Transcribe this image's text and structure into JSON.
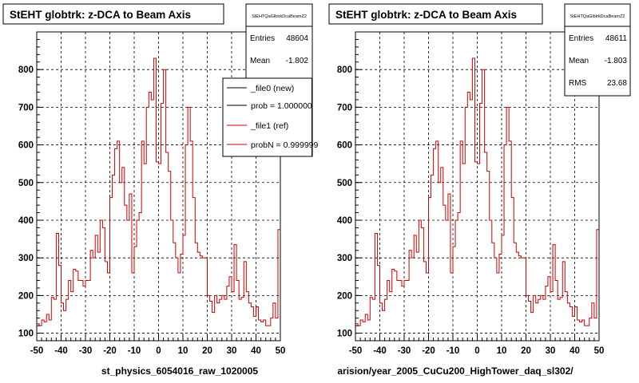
{
  "colors": {
    "frame": "#000000",
    "grid": "#000000",
    "histogram": "#cc0000",
    "background": "#ffffff"
  },
  "chart_data": [
    {
      "type": "line",
      "step": true,
      "title": "StEHT globtrk: z-DCA to Beam Axis",
      "xlabel": "st_physics_6054016_raw_1020005",
      "ylabel": "",
      "xlim": [
        -50,
        50
      ],
      "ylim": [
        80,
        900
      ],
      "x_ticks": [
        -50,
        -40,
        -30,
        -20,
        -10,
        0,
        10,
        20,
        30,
        40,
        50
      ],
      "y_ticks": [
        100,
        200,
        300,
        400,
        500,
        600,
        700,
        800
      ],
      "grid": true,
      "stats": {
        "header": "StEHTQaGlbtrkDcaBeamZ2",
        "rows": [
          {
            "label": "Entries",
            "value": "48604"
          },
          {
            "label": "Mean",
            "value": "-1.802"
          }
        ]
      },
      "legend": {
        "placement": "top-right",
        "entries": [
          {
            "label": "_file0 (new)",
            "color": "#000000"
          },
          {
            "label": "prob = 1.000000",
            "color": "#000000"
          },
          {
            "label": "_file1 (ref)",
            "color": "#cc0000"
          },
          {
            "label": "probN = 0.999999",
            "color": "#cc0000"
          }
        ]
      },
      "bin_width": 1,
      "x_start": -50,
      "values": [
        125,
        120,
        135,
        130,
        150,
        135,
        195,
        190,
        365,
        280,
        180,
        160,
        190,
        240,
        210,
        270,
        265,
        240,
        240,
        225,
        240,
        240,
        320,
        300,
        360,
        315,
        400,
        380,
        290,
        260,
        460,
        520,
        590,
        610,
        500,
        540,
        440,
        400,
        470,
        260,
        330,
        400,
        420,
        610,
        550,
        700,
        740,
        720,
        830,
        555,
        550,
        710,
        800,
        580,
        530,
        400,
        340,
        300,
        260,
        310,
        360,
        600,
        700,
        610,
        460,
        340,
        315,
        305,
        300,
        300,
        200,
        185,
        155,
        200,
        180,
        190,
        200,
        190,
        225,
        250,
        210,
        335,
        240,
        190,
        195,
        290,
        210,
        180,
        170,
        145,
        170,
        135,
        130,
        135,
        120,
        120,
        140,
        180,
        140,
        375
      ]
    },
    {
      "type": "line",
      "step": true,
      "title": "StEHT globtrk: z-DCA to Beam Axis",
      "xlabel": "arision/year_2005_CuCu200_HighTower_daq_sl302/",
      "ylabel": "",
      "xlim": [
        -50,
        50
      ],
      "ylim": [
        80,
        900
      ],
      "x_ticks": [
        -50,
        -40,
        -30,
        -20,
        -10,
        0,
        10,
        20,
        30,
        40,
        50
      ],
      "y_ticks": [
        100,
        200,
        300,
        400,
        500,
        600,
        700,
        800
      ],
      "grid": true,
      "stats": {
        "header": "StEHTQaGlbtrkDcaBeamZ2",
        "rows": [
          {
            "label": "Entries",
            "value": "48611"
          },
          {
            "label": "Mean",
            "value": "-1.803"
          },
          {
            "label": "RMS",
            "value": "23.68"
          }
        ]
      },
      "bin_width": 1,
      "x_start": -50,
      "values": [
        125,
        120,
        135,
        130,
        150,
        135,
        195,
        190,
        365,
        280,
        180,
        160,
        190,
        240,
        210,
        270,
        265,
        240,
        240,
        225,
        240,
        240,
        320,
        300,
        360,
        315,
        400,
        380,
        290,
        260,
        460,
        520,
        590,
        610,
        500,
        540,
        440,
        400,
        470,
        260,
        330,
        400,
        420,
        610,
        550,
        700,
        740,
        720,
        830,
        555,
        550,
        710,
        800,
        580,
        530,
        400,
        340,
        300,
        260,
        310,
        360,
        600,
        700,
        610,
        460,
        340,
        315,
        305,
        300,
        300,
        200,
        185,
        155,
        200,
        180,
        190,
        200,
        190,
        225,
        250,
        210,
        335,
        240,
        190,
        195,
        290,
        210,
        180,
        170,
        145,
        170,
        135,
        130,
        135,
        120,
        120,
        140,
        180,
        140,
        375
      ]
    }
  ]
}
